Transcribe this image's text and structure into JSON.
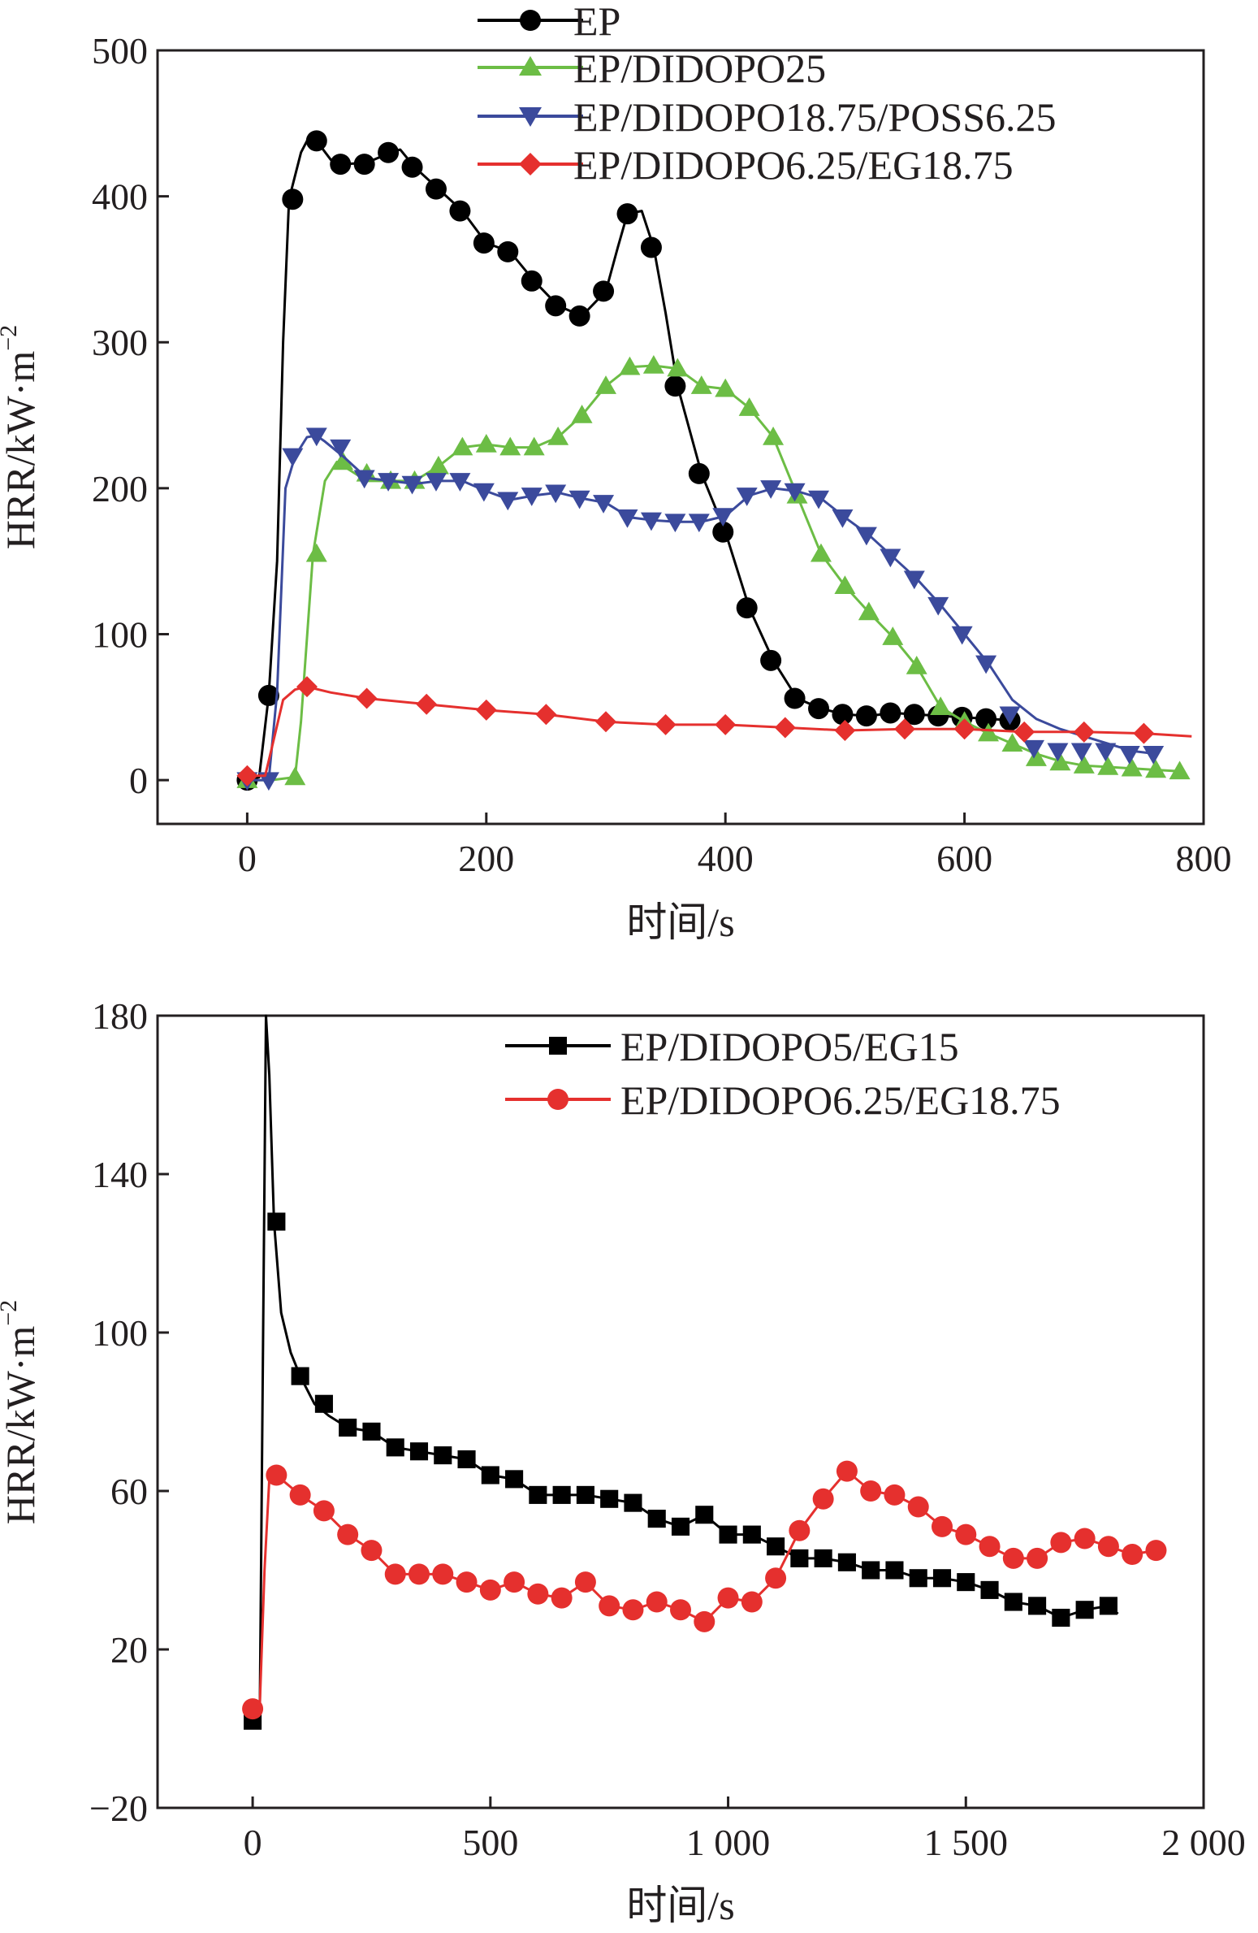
{
  "chart_data": [
    {
      "type": "line",
      "xlabel": "时间/s",
      "ylabel": {
        "base": "HRR/kW·m",
        "exponent": "−2"
      },
      "xlim": [
        -75,
        800
      ],
      "ylim": [
        -30,
        500
      ],
      "xticks": [
        0,
        200,
        400,
        600,
        800
      ],
      "yticks": [
        0,
        100,
        200,
        300,
        400,
        500
      ],
      "xtick_labels": [
        "0",
        "200",
        "400",
        "600",
        "800"
      ],
      "ytick_labels": [
        "0",
        "100",
        "200",
        "300",
        "400",
        "500"
      ],
      "legend_position": "top-right",
      "series": [
        {
          "name": "EP",
          "color": "#000000",
          "marker": "circle",
          "x": [
            0,
            10,
            18,
            25,
            30,
            35,
            45,
            50,
            58,
            70,
            80,
            100,
            120,
            128,
            140,
            160,
            180,
            200,
            220,
            240,
            260,
            280,
            300,
            310,
            318,
            330,
            340,
            350,
            360,
            380,
            400,
            420,
            440,
            460,
            480,
            500,
            520,
            540,
            560,
            580,
            600,
            620,
            640
          ],
          "y": [
            0,
            2,
            58,
            150,
            300,
            398,
            430,
            438,
            438,
            425,
            422,
            423,
            430,
            432,
            420,
            405,
            390,
            368,
            362,
            342,
            325,
            318,
            335,
            365,
            388,
            390,
            365,
            320,
            270,
            210,
            170,
            118,
            82,
            56,
            49,
            45,
            44,
            46,
            45,
            44,
            43,
            42,
            41
          ],
          "markers_x": [
            0,
            18,
            38,
            58,
            78,
            98,
            118,
            138,
            158,
            178,
            198,
            218,
            238,
            258,
            278,
            298,
            318,
            338,
            358,
            378,
            398,
            418,
            438,
            458,
            478,
            498,
            518,
            538,
            558,
            578,
            598,
            618,
            638
          ],
          "markers_y": [
            0,
            58,
            398,
            438,
            422,
            422,
            430,
            420,
            405,
            390,
            368,
            362,
            342,
            325,
            318,
            335,
            388,
            365,
            270,
            210,
            170,
            118,
            82,
            56,
            49,
            45,
            44,
            46,
            45,
            44,
            43,
            42,
            41
          ]
        },
        {
          "name": "EP/DIDOPO25",
          "color": "#6cbd45",
          "marker": "triangle-up",
          "x": [
            0,
            20,
            40,
            45,
            55,
            65,
            75,
            100,
            140,
            160,
            180,
            200,
            220,
            240,
            260,
            280,
            300,
            320,
            340,
            360,
            380,
            400,
            420,
            440,
            460,
            480,
            500,
            520,
            540,
            560,
            580,
            600,
            620,
            640,
            660,
            680,
            700,
            720,
            740,
            760,
            780
          ],
          "y": [
            0,
            0,
            2,
            40,
            155,
            205,
            218,
            205,
            205,
            215,
            228,
            230,
            228,
            228,
            235,
            250,
            270,
            283,
            284,
            282,
            270,
            268,
            255,
            235,
            195,
            155,
            133,
            115,
            98,
            78,
            50,
            40,
            32,
            25,
            18,
            13,
            10,
            9,
            8,
            7,
            6
          ],
          "markers_x": [
            0,
            40,
            58,
            80,
            100,
            120,
            140,
            160,
            180,
            200,
            220,
            240,
            260,
            280,
            300,
            320,
            340,
            360,
            380,
            400,
            420,
            440,
            460,
            480,
            500,
            520,
            540,
            560,
            580,
            600,
            620,
            640,
            660,
            680,
            700,
            720,
            740,
            760,
            780
          ],
          "markers_y": [
            0,
            2,
            155,
            218,
            210,
            205,
            205,
            215,
            228,
            230,
            228,
            228,
            235,
            250,
            270,
            283,
            284,
            282,
            270,
            268,
            255,
            235,
            195,
            155,
            133,
            115,
            98,
            78,
            50,
            40,
            32,
            25,
            15,
            12,
            10,
            9,
            8,
            7,
            6
          ]
        },
        {
          "name": "EP/DIDOPO18.75/POSS6.25",
          "color": "#3b4a9c",
          "marker": "triangle-down",
          "x": [
            0,
            18,
            25,
            32,
            40,
            50,
            58,
            65,
            80,
            100,
            120,
            140,
            160,
            180,
            200,
            220,
            240,
            260,
            280,
            300,
            320,
            340,
            360,
            380,
            400,
            420,
            440,
            460,
            480,
            500,
            520,
            540,
            560,
            580,
            600,
            620,
            640,
            660,
            680,
            700,
            720,
            740,
            760
          ],
          "y": [
            0,
            0,
            60,
            200,
            222,
            235,
            236,
            232,
            222,
            207,
            205,
            203,
            205,
            205,
            198,
            192,
            195,
            197,
            193,
            190,
            180,
            178,
            177,
            177,
            181,
            195,
            200,
            198,
            193,
            180,
            168,
            153,
            138,
            120,
            100,
            80,
            55,
            42,
            35,
            30,
            25,
            20,
            18
          ],
          "markers_x": [
            0,
            18,
            38,
            58,
            78,
            98,
            118,
            138,
            158,
            178,
            198,
            218,
            238,
            258,
            278,
            298,
            318,
            338,
            358,
            378,
            398,
            418,
            438,
            458,
            478,
            498,
            518,
            538,
            558,
            578,
            598,
            618,
            638,
            658,
            678,
            698,
            718,
            738,
            758
          ],
          "markers_y": [
            0,
            0,
            222,
            236,
            228,
            207,
            205,
            203,
            205,
            205,
            198,
            192,
            195,
            197,
            193,
            190,
            180,
            178,
            177,
            177,
            181,
            195,
            200,
            198,
            193,
            180,
            168,
            153,
            138,
            120,
            100,
            80,
            45,
            22,
            20,
            20,
            20,
            18,
            18
          ]
        },
        {
          "name": "EP/DIDOPO6.25/EG18.75",
          "color": "#e5302e",
          "marker": "diamond",
          "x": [
            0,
            15,
            20,
            30,
            40,
            50,
            70,
            100,
            150,
            200,
            250,
            300,
            350,
            400,
            450,
            500,
            550,
            600,
            650,
            700,
            750,
            790
          ],
          "y": [
            3,
            3,
            20,
            55,
            62,
            64,
            60,
            56,
            52,
            48,
            45,
            40,
            38,
            38,
            36,
            34,
            35,
            35,
            33,
            33,
            32,
            30
          ],
          "markers_x": [
            0,
            50,
            100,
            150,
            200,
            250,
            300,
            350,
            400,
            450,
            500,
            550,
            600,
            650,
            700,
            750
          ],
          "markers_y": [
            3,
            64,
            56,
            52,
            48,
            45,
            40,
            38,
            38,
            36,
            34,
            35,
            35,
            33,
            33,
            32
          ]
        }
      ]
    },
    {
      "type": "line",
      "xlabel": "时间/s",
      "ylabel": {
        "base": "HRR/kW·m",
        "exponent": "−2"
      },
      "xlim": [
        -200,
        2000
      ],
      "ylim": [
        -20,
        180
      ],
      "xticks": [
        0,
        500,
        1000,
        1500,
        2000
      ],
      "yticks": [
        -20,
        20,
        60,
        100,
        140,
        180
      ],
      "xtick_labels": [
        "0",
        "500",
        "1 000",
        "1 500",
        "2 000"
      ],
      "ytick_labels": [
        "−20",
        "20",
        "60",
        "100",
        "140",
        "180"
      ],
      "legend_position": "top-right",
      "series": [
        {
          "name": "EP/DIDOPO5/EG15",
          "color": "#000000",
          "marker": "square",
          "x": [
            0,
            15,
            22,
            28,
            35,
            45,
            60,
            80,
            100,
            130,
            160,
            200,
            250,
            300,
            350,
            400,
            450,
            500,
            550,
            600,
            650,
            700,
            750,
            800,
            850,
            900,
            950,
            1000,
            1050,
            1100,
            1150,
            1200,
            1250,
            1300,
            1350,
            1400,
            1450,
            1500,
            1550,
            1600,
            1650,
            1700,
            1750,
            1800,
            1820
          ],
          "y": [
            2,
            4,
            100,
            180,
            165,
            128,
            105,
            95,
            89,
            82,
            79,
            76,
            75,
            71,
            70,
            69,
            68,
            64,
            63,
            59,
            59,
            59,
            58,
            57,
            53,
            51,
            54,
            49,
            49,
            46,
            43,
            43,
            42,
            40,
            40,
            38,
            38,
            37,
            35,
            32,
            31,
            28,
            30,
            31,
            29
          ],
          "markers_x": [
            0,
            50,
            100,
            150,
            200,
            250,
            300,
            350,
            400,
            450,
            500,
            550,
            600,
            650,
            700,
            750,
            800,
            850,
            900,
            950,
            1000,
            1050,
            1100,
            1150,
            1200,
            1250,
            1300,
            1350,
            1400,
            1450,
            1500,
            1550,
            1600,
            1650,
            1700,
            1750,
            1800
          ],
          "markers_y": [
            2,
            128,
            89,
            82,
            76,
            75,
            71,
            70,
            69,
            68,
            64,
            63,
            59,
            59,
            59,
            58,
            57,
            53,
            51,
            54,
            49,
            49,
            46,
            43,
            43,
            42,
            40,
            40,
            38,
            38,
            37,
            35,
            32,
            31,
            28,
            30,
            31
          ]
        },
        {
          "name": "EP/DIDOPO6.25/EG18.75",
          "color": "#e5302e",
          "marker": "circle",
          "x": [
            0,
            15,
            25,
            35,
            50,
            70,
            100,
            150,
            200,
            250,
            300,
            350,
            400,
            450,
            500,
            550,
            600,
            650,
            700,
            750,
            800,
            850,
            900,
            950,
            1000,
            1050,
            1100,
            1150,
            1200,
            1250,
            1300,
            1350,
            1400,
            1450,
            1500,
            1550,
            1600,
            1650,
            1700,
            1750,
            1800,
            1850,
            1900
          ],
          "y": [
            5,
            6,
            40,
            63,
            64,
            62,
            59,
            55,
            49,
            45,
            39,
            39,
            39,
            37,
            35,
            37,
            34,
            33,
            37,
            31,
            30,
            32,
            30,
            27,
            33,
            32,
            38,
            50,
            58,
            65,
            60,
            59,
            56,
            51,
            49,
            46,
            43,
            43,
            47,
            48,
            46,
            44,
            45
          ],
          "markers_x": [
            0,
            50,
            100,
            150,
            200,
            250,
            300,
            350,
            400,
            450,
            500,
            550,
            600,
            650,
            700,
            750,
            800,
            850,
            900,
            950,
            1000,
            1050,
            1100,
            1150,
            1200,
            1250,
            1300,
            1350,
            1400,
            1450,
            1500,
            1550,
            1600,
            1650,
            1700,
            1750,
            1800,
            1850,
            1900
          ],
          "markers_y": [
            5,
            64,
            59,
            55,
            49,
            45,
            39,
            39,
            39,
            37,
            35,
            37,
            34,
            33,
            37,
            31,
            30,
            32,
            30,
            27,
            33,
            32,
            38,
            50,
            58,
            65,
            60,
            59,
            56,
            51,
            49,
            46,
            43,
            43,
            47,
            48,
            46,
            44,
            45
          ]
        }
      ]
    }
  ]
}
